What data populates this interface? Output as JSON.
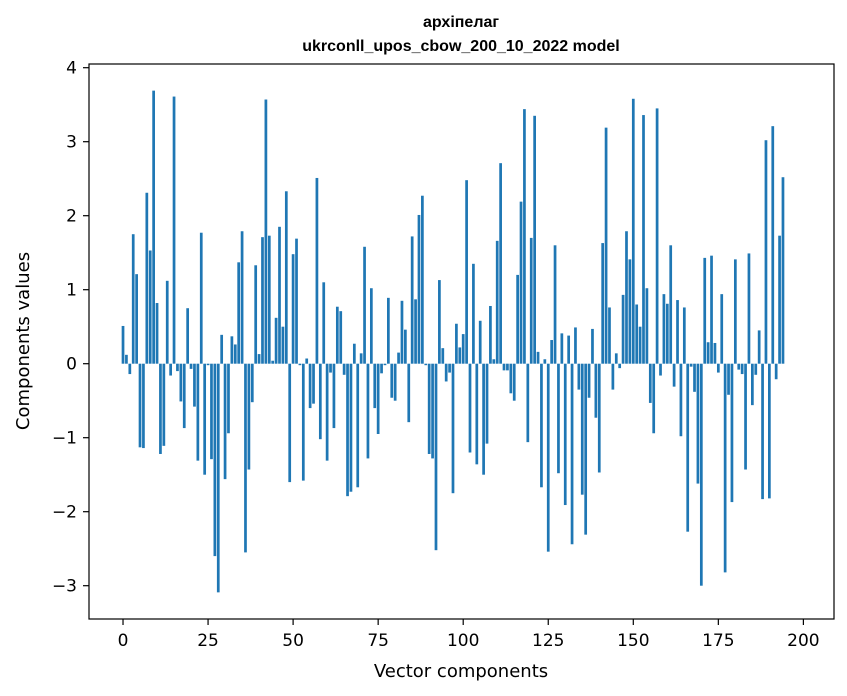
{
  "chart_data": {
    "type": "bar",
    "title": "архіпелаг",
    "subtitle": "ukrconll_upos_cbow_200_10_2022 model",
    "xlabel": "Vector components",
    "ylabel": "Components values",
    "xlim": [
      -10,
      209
    ],
    "ylim": [
      -3.45,
      4.05
    ],
    "xticks": [
      0,
      25,
      50,
      75,
      100,
      125,
      150,
      175,
      200
    ],
    "yticks": [
      -3,
      -2,
      -1,
      0,
      1,
      2,
      3,
      4
    ],
    "xtick_labels": [
      "0",
      "25",
      "50",
      "75",
      "100",
      "125",
      "150",
      "175",
      "200"
    ],
    "ytick_labels": [
      "−3",
      "−2",
      "−1",
      "0",
      "1",
      "2",
      "3",
      "4"
    ],
    "grid": false,
    "color": "#1f77b4",
    "values": [
      0.51,
      0.12,
      -0.14,
      1.75,
      1.21,
      -1.13,
      -1.14,
      2.31,
      1.53,
      3.69,
      0.82,
      -1.22,
      -1.11,
      1.12,
      -0.16,
      3.61,
      -0.1,
      -0.51,
      -0.87,
      0.75,
      -0.07,
      -0.58,
      -1.31,
      1.77,
      -1.5,
      -0.02,
      -1.29,
      -2.6,
      -3.09,
      0.39,
      -1.56,
      -0.94,
      0.37,
      0.26,
      1.37,
      1.79,
      -2.55,
      -1.43,
      -0.52,
      1.33,
      0.13,
      1.71,
      3.57,
      1.73,
      0.04,
      0.62,
      1.85,
      0.5,
      2.33,
      -1.6,
      1.48,
      1.69,
      -0.02,
      -1.58,
      0.07,
      -0.6,
      -0.54,
      2.51,
      -1.02,
      1.1,
      -1.31,
      -0.12,
      -0.87,
      0.77,
      0.71,
      -0.15,
      -1.79,
      -1.73,
      0.27,
      -1.67,
      0.14,
      1.58,
      -1.28,
      1.02,
      -0.6,
      -0.95,
      -0.13,
      -0.02,
      0.89,
      -0.46,
      -0.5,
      0.15,
      0.85,
      0.46,
      -0.79,
      1.72,
      0.87,
      2.01,
      2.27,
      -0.02,
      -1.22,
      -1.28,
      -2.52,
      1.13,
      0.21,
      -0.24,
      -0.12,
      -1.75,
      0.54,
      0.22,
      0.4,
      2.48,
      -1.2,
      1.35,
      -1.36,
      0.58,
      -1.5,
      -1.08,
      0.78,
      0.06,
      1.66,
      2.71,
      -0.09,
      -0.09,
      -0.4,
      -0.5,
      1.2,
      2.19,
      3.44,
      -1.06,
      1.7,
      3.35,
      0.16,
      -1.67,
      0.06,
      -2.54,
      0.32,
      1.6,
      -1.48,
      0.41,
      -1.91,
      0.38,
      -2.44,
      0.49,
      -0.35,
      -1.77,
      -2.31,
      -0.46,
      0.47,
      -0.73,
      -1.47,
      1.63,
      3.19,
      0.76,
      -0.35,
      0.14,
      -0.06,
      0.93,
      1.79,
      1.41,
      3.58,
      0.8,
      0.5,
      3.36,
      1.02,
      -0.53,
      -0.94,
      3.45,
      -0.16,
      0.94,
      0.81,
      1.6,
      -0.31,
      0.86,
      -0.98,
      0.76,
      -2.27,
      -0.04,
      -0.38,
      -1.62,
      -3.0,
      1.43,
      0.29,
      1.46,
      0.28,
      -0.12,
      0.94,
      -2.82,
      -0.42,
      -1.87,
      1.41,
      -0.08,
      -0.14,
      -1.43,
      1.49,
      -0.56,
      -0.15,
      0.45,
      -1.83,
      3.02,
      -1.82,
      3.21,
      -0.21,
      1.73,
      2.52
    ]
  }
}
